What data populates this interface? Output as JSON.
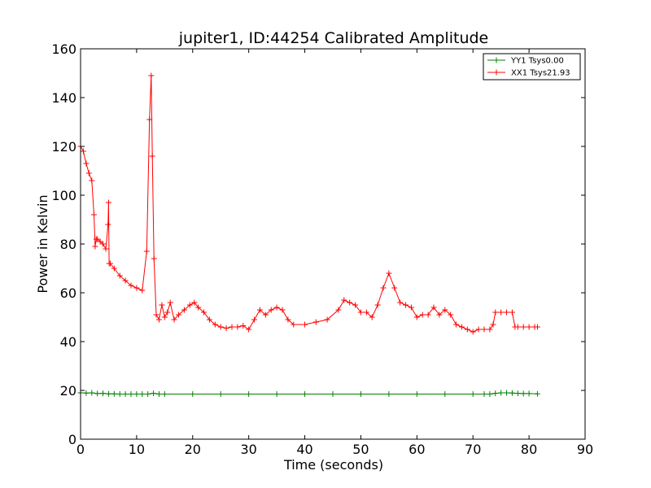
{
  "chart_data": {
    "type": "line",
    "title": "jupiter1, ID:44254 Calibrated Amplitude",
    "xlabel": "Time (seconds)",
    "ylabel": "Power in Kelvin",
    "xlim": [
      0,
      90
    ],
    "ylim": [
      0,
      160
    ],
    "xticks": [
      0,
      10,
      20,
      30,
      40,
      50,
      60,
      70,
      80,
      90
    ],
    "yticks": [
      0,
      20,
      40,
      60,
      80,
      100,
      120,
      140,
      160
    ],
    "xtick_labels": [
      "0",
      "10",
      "20",
      "30",
      "40",
      "50",
      "60",
      "70",
      "80",
      "90"
    ],
    "ytick_labels": [
      "0",
      "20",
      "40",
      "60",
      "80",
      "100",
      "120",
      "140",
      "160"
    ],
    "grid": false,
    "legend_position": "top-right",
    "marker": "+",
    "series": [
      {
        "name": "YY1 Tsys0.00",
        "color": "#008000",
        "x": [
          0,
          1,
          2,
          3,
          4,
          5,
          6,
          7,
          8,
          9,
          10,
          11,
          12,
          13,
          14,
          15,
          20,
          25,
          30,
          35,
          40,
          45,
          50,
          55,
          60,
          65,
          70,
          72,
          73,
          74,
          75,
          76,
          77,
          78,
          79,
          80,
          81.5
        ],
        "y": [
          19,
          18.9,
          19,
          18.7,
          18.8,
          18.6,
          18.6,
          18.5,
          18.5,
          18.5,
          18.5,
          18.5,
          18.5,
          18.8,
          18.5,
          18.5,
          18.5,
          18.5,
          18.5,
          18.5,
          18.5,
          18.5,
          18.5,
          18.5,
          18.5,
          18.5,
          18.5,
          18.5,
          18.5,
          18.8,
          19,
          19,
          18.9,
          18.8,
          18.7,
          18.7,
          18.6
        ]
      },
      {
        "name": "XX1 Tsys21.93",
        "color": "#ff0000",
        "x": [
          0,
          0.5,
          1,
          1.5,
          2,
          2.4,
          2.6,
          2.8,
          3,
          3.5,
          4,
          4.5,
          4.9,
          5.0,
          5.1,
          5.3,
          6,
          7,
          8,
          9,
          10,
          11,
          11.8,
          12.3,
          12.6,
          12.8,
          13.1,
          13.5,
          14,
          14.5,
          15,
          15.5,
          16,
          16.7,
          17.5,
          18.5,
          19.5,
          20.3,
          21,
          22,
          23,
          24,
          25,
          26,
          27,
          28,
          29,
          30,
          31,
          32,
          33,
          34,
          35,
          36,
          37,
          38,
          40,
          42,
          44,
          46,
          47,
          48,
          49,
          50,
          51,
          52,
          53,
          54,
          55,
          56,
          57,
          58,
          59,
          60,
          61,
          62,
          63,
          64,
          65,
          66,
          67,
          68,
          69,
          70,
          71,
          72,
          73,
          73.6,
          74,
          75,
          76,
          77,
          77.5,
          78,
          79,
          80,
          81,
          81.5
        ],
        "y": [
          120,
          118,
          113,
          109,
          106,
          92,
          79,
          82,
          82,
          81,
          80,
          78,
          88,
          97,
          72,
          72,
          70,
          67,
          65,
          63,
          62,
          61,
          77,
          131,
          149,
          116,
          74,
          51,
          49,
          55,
          50,
          52,
          56,
          49,
          51,
          53,
          55,
          56,
          54,
          52,
          49,
          47,
          46,
          45.5,
          46,
          46,
          46.5,
          45,
          49,
          53,
          51,
          53,
          54,
          53,
          49,
          47,
          47,
          48,
          49,
          53,
          57,
          56,
          55,
          52,
          52,
          50,
          55,
          62,
          68,
          62,
          56,
          55,
          54,
          50,
          51,
          51,
          54,
          51,
          53,
          51,
          47,
          46,
          45,
          44,
          45,
          45,
          45,
          47,
          52,
          52,
          52,
          52,
          46,
          46,
          46,
          46,
          46,
          46
        ]
      }
    ]
  }
}
